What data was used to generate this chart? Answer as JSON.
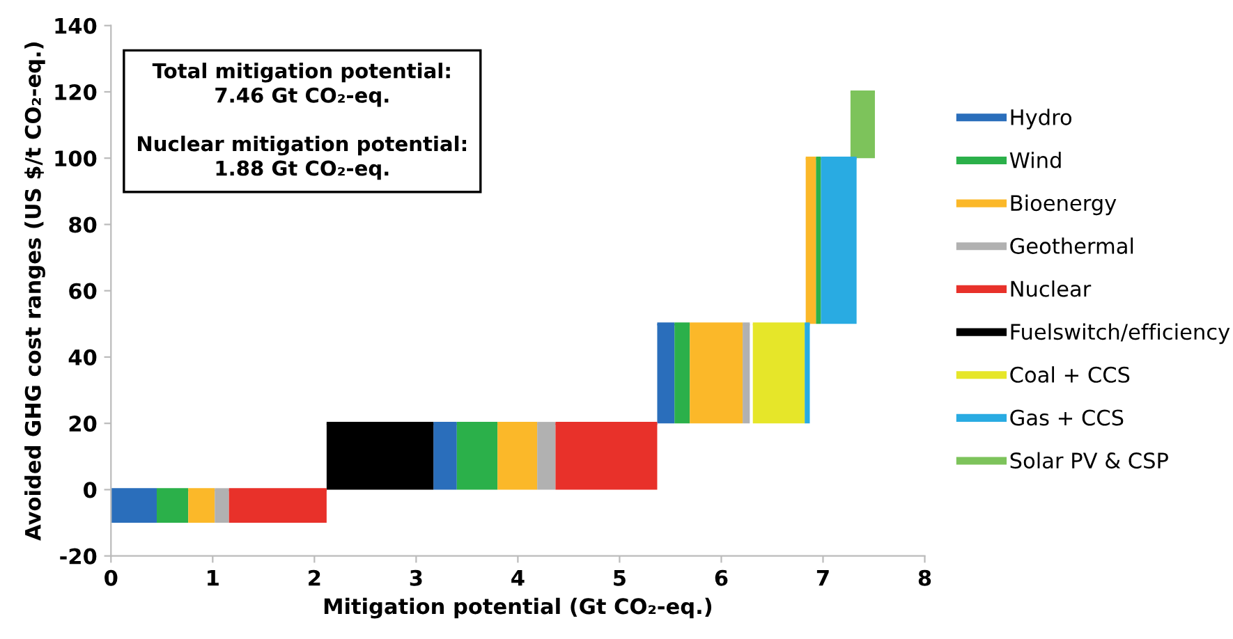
{
  "chart_data": {
    "type": "bar",
    "xlabel": "Mitigation potential (Gt CO₂-eq.)",
    "ylabel": "Avoided GHG cost ranges (US $/t CO₂-eq.)",
    "annotations": [
      "Total mitigation potential:\n7.46 Gt CO₂-eq.",
      "Nuclear mitigation potential:\n1.88 Gt CO₂-eq."
    ],
    "xlim": [
      0,
      8
    ],
    "xticks": [
      0,
      1,
      2,
      3,
      4,
      5,
      6,
      7,
      8
    ],
    "ylim": [
      -20,
      140
    ],
    "yticks": [
      -20,
      0,
      20,
      40,
      60,
      80,
      100,
      120,
      140
    ],
    "grid": false,
    "legend": "right",
    "series": [
      {
        "name": "Hydro",
        "color": "#2a6ebb",
        "x": [
          0.225,
          3.285,
          5.455
        ],
        "xerrors": [
          [
            0,
            0.45
          ],
          [
            3.17,
            3.4
          ],
          [
            5.37,
            5.54
          ]
        ],
        "base": [
          -10,
          0,
          20
        ],
        "values": [
          10,
          20,
          30
        ]
      },
      {
        "name": "Wind",
        "color": "#2bb04a",
        "x": [
          0.605,
          3.6,
          5.615,
          6.955
        ],
        "xerrors": [
          [
            0.45,
            0.76
          ],
          [
            3.4,
            3.8
          ],
          [
            5.54,
            5.69
          ],
          [
            6.93,
            6.98
          ]
        ],
        "base": [
          -10,
          0,
          20,
          50
        ],
        "values": [
          10,
          20,
          30,
          50
        ]
      },
      {
        "name": "Bioenergy",
        "color": "#fbb829",
        "x": [
          0.89,
          3.995,
          5.95,
          6.88
        ],
        "xerrors": [
          [
            0.76,
            1.02
          ],
          [
            3.8,
            4.19
          ],
          [
            5.69,
            6.21
          ],
          [
            6.83,
            6.93
          ]
        ],
        "base": [
          -10,
          0,
          20,
          50
        ],
        "values": [
          10,
          20,
          30,
          50
        ]
      },
      {
        "name": "Geothermal",
        "color": "#b1b1b1",
        "x": [
          1.09,
          4.28,
          6.245
        ],
        "xerrors": [
          [
            1.02,
            1.16
          ],
          [
            4.19,
            4.37
          ],
          [
            6.21,
            6.28
          ]
        ],
        "base": [
          -10,
          0,
          20
        ],
        "values": [
          10,
          20,
          30
        ]
      },
      {
        "name": "Nuclear",
        "color": "#e8312a",
        "x": [
          1.64,
          4.87
        ],
        "xerrors": [
          [
            1.16,
            2.12
          ],
          [
            4.37,
            5.37
          ]
        ],
        "base": [
          -10,
          0
        ],
        "values": [
          10,
          20
        ]
      },
      {
        "name": "Fuelswitch/efficiency",
        "color": "#000000",
        "x": [
          2.645
        ],
        "xerrors": [
          [
            2.12,
            3.17
          ]
        ],
        "base": [
          0
        ],
        "values": [
          20
        ]
      },
      {
        "name": "Coal + CCS",
        "color": "#e6e629",
        "x": [
          6.565
        ],
        "xerrors": [
          [
            6.31,
            6.82
          ]
        ],
        "base": [
          20
        ],
        "values": [
          30
        ]
      },
      {
        "name": "Gas + CCS",
        "color": "#29abe2",
        "x": [
          6.845,
          7.155
        ],
        "xerrors": [
          [
            6.82,
            6.87
          ],
          [
            6.98,
            7.33
          ]
        ],
        "base": [
          20,
          50
        ],
        "values": [
          30,
          50
        ]
      },
      {
        "name": "Solar PV & CSP",
        "color": "#7dc35b",
        "x": [
          7.39
        ],
        "xerrors": [
          [
            7.27,
            7.51
          ]
        ],
        "base": [
          100
        ],
        "values": [
          20
        ]
      }
    ]
  }
}
